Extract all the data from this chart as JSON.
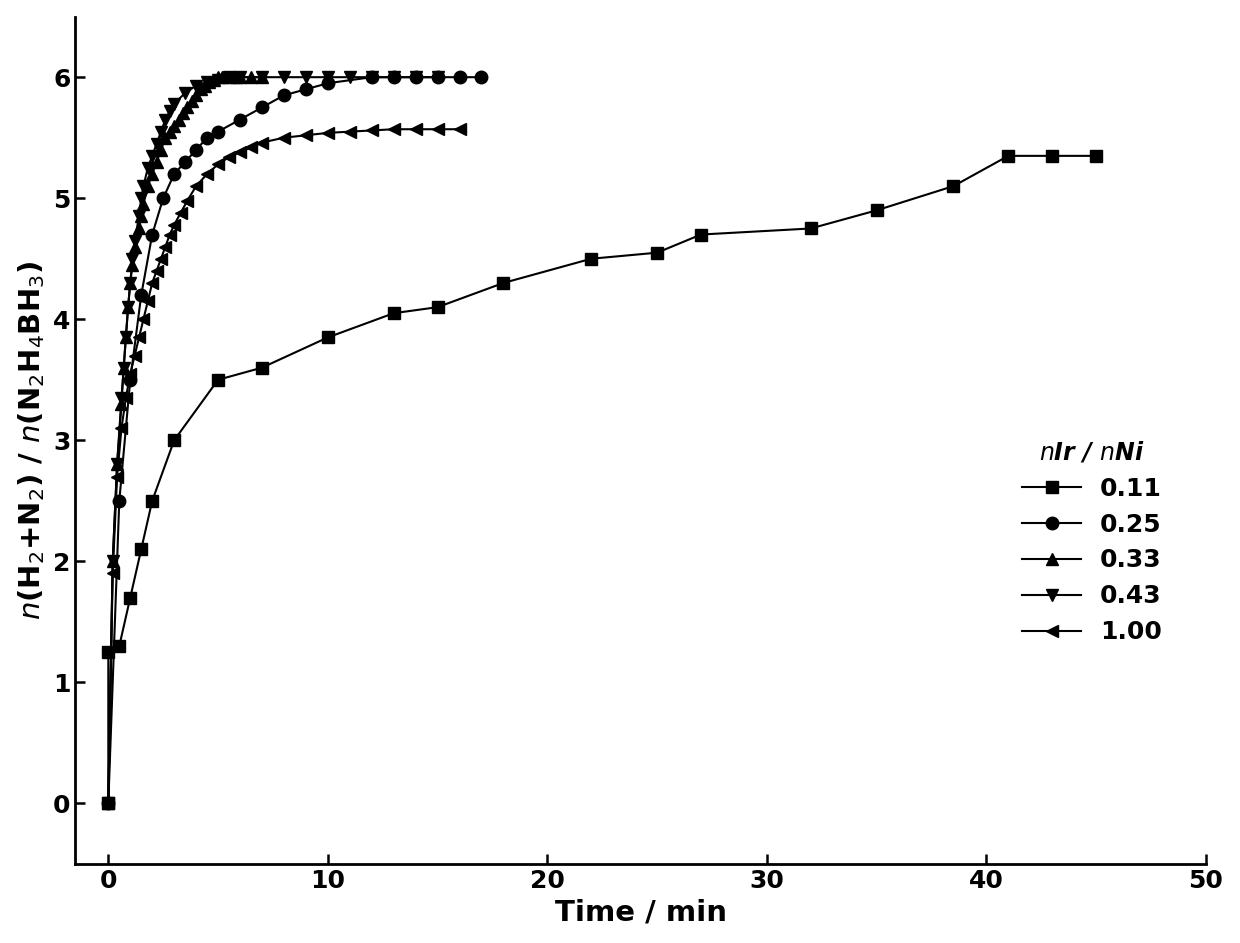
{
  "series": {
    "0.11": {
      "x": [
        0,
        0.0,
        0.5,
        1.0,
        1.5,
        2.0,
        3.0,
        5.0,
        7.0,
        10.0,
        13.0,
        15.0,
        18.0,
        22.0,
        25.0,
        27.0,
        32.0,
        35.0,
        38.5,
        41.0,
        43.0,
        45.0
      ],
      "y": [
        0,
        1.25,
        1.3,
        1.7,
        2.1,
        2.5,
        3.0,
        3.5,
        3.6,
        3.85,
        4.05,
        4.1,
        4.3,
        4.5,
        4.55,
        4.7,
        4.75,
        4.9,
        5.1,
        5.35,
        5.35,
        5.35
      ],
      "marker": "s",
      "label": "0.11",
      "markersize": 9
    },
    "0.25": {
      "x": [
        0,
        0.5,
        1.0,
        1.5,
        2.0,
        2.5,
        3.0,
        3.5,
        4.0,
        4.5,
        5.0,
        6.0,
        7.0,
        8.0,
        9.0,
        10.0,
        12.0,
        13.0,
        14.0,
        15.0,
        16.0,
        17.0
      ],
      "y": [
        0,
        2.5,
        3.5,
        4.2,
        4.7,
        5.0,
        5.2,
        5.3,
        5.4,
        5.5,
        5.55,
        5.65,
        5.75,
        5.85,
        5.9,
        5.95,
        6.0,
        6.0,
        6.0,
        6.0,
        6.0,
        6.0
      ],
      "marker": "o",
      "label": "0.25",
      "markersize": 9
    },
    "0.33": {
      "x": [
        0,
        0.2,
        0.4,
        0.6,
        0.7,
        0.8,
        0.9,
        1.0,
        1.1,
        1.2,
        1.4,
        1.5,
        1.6,
        1.8,
        2.0,
        2.2,
        2.4,
        2.6,
        2.8,
        3.0,
        3.2,
        3.4,
        3.6,
        3.8,
        4.0,
        4.2,
        4.4,
        4.6,
        4.8,
        5.0,
        5.2,
        5.5,
        5.8,
        6.0,
        6.5,
        7.0
      ],
      "y": [
        0,
        2.0,
        2.8,
        3.3,
        3.6,
        3.85,
        4.1,
        4.3,
        4.45,
        4.6,
        4.75,
        4.85,
        4.95,
        5.1,
        5.2,
        5.3,
        5.4,
        5.5,
        5.55,
        5.6,
        5.65,
        5.7,
        5.75,
        5.8,
        5.85,
        5.9,
        5.93,
        5.96,
        5.98,
        6.0,
        6.0,
        6.0,
        6.0,
        6.0,
        6.0,
        6.0
      ],
      "marker": "^",
      "label": "0.33",
      "markersize": 9
    },
    "0.43": {
      "x": [
        0,
        0.2,
        0.4,
        0.6,
        0.7,
        0.8,
        0.9,
        1.0,
        1.1,
        1.2,
        1.4,
        1.5,
        1.6,
        1.8,
        2.0,
        2.2,
        2.4,
        2.6,
        2.8,
        3.0,
        3.5,
        4.0,
        4.5,
        5.0,
        5.5,
        6.0,
        7.0,
        8.0,
        9.0,
        10.0,
        11.0,
        12.0,
        13.0,
        14.0,
        15.0
      ],
      "y": [
        0,
        2.0,
        2.8,
        3.35,
        3.6,
        3.85,
        4.1,
        4.3,
        4.5,
        4.65,
        4.85,
        5.0,
        5.1,
        5.25,
        5.35,
        5.45,
        5.55,
        5.65,
        5.72,
        5.78,
        5.87,
        5.93,
        5.96,
        5.98,
        6.0,
        6.0,
        6.0,
        6.0,
        6.0,
        6.0,
        6.0,
        6.0,
        6.0,
        6.0,
        6.0
      ],
      "marker": "v",
      "label": "0.43",
      "markersize": 9
    },
    "1.00": {
      "x": [
        0,
        0.2,
        0.4,
        0.6,
        0.8,
        1.0,
        1.2,
        1.4,
        1.6,
        1.8,
        2.0,
        2.2,
        2.4,
        2.6,
        2.8,
        3.0,
        3.3,
        3.6,
        4.0,
        4.5,
        5.0,
        5.5,
        6.0,
        6.5,
        7.0,
        8.0,
        9.0,
        10.0,
        11.0,
        12.0,
        13.0,
        14.0,
        15.0,
        16.0
      ],
      "y": [
        0,
        1.9,
        2.7,
        3.1,
        3.35,
        3.55,
        3.7,
        3.85,
        4.0,
        4.15,
        4.3,
        4.4,
        4.5,
        4.6,
        4.7,
        4.78,
        4.88,
        4.98,
        5.1,
        5.2,
        5.28,
        5.34,
        5.38,
        5.42,
        5.46,
        5.5,
        5.52,
        5.54,
        5.55,
        5.56,
        5.57,
        5.57,
        5.57,
        5.57
      ],
      "marker": "<",
      "label": "1.00",
      "markersize": 9
    }
  },
  "xlabel": "Time / min",
  "ylabel": "$n$(H$_2$+N$_2$) / $n$(N$_2$H$_4$BH$_3$)",
  "legend_title": "$n$Ir / $n$Ni",
  "xlim": [
    -1.5,
    50
  ],
  "ylim": [
    -0.5,
    6.5
  ],
  "xticks": [
    0,
    10,
    20,
    30,
    40,
    50
  ],
  "yticks": [
    0,
    1,
    2,
    3,
    4,
    5,
    6
  ],
  "color": "#000000",
  "linewidth": 1.5,
  "markersize": 9,
  "fontsize_ticks": 18,
  "fontsize_labels": 21,
  "fontsize_legend": 17
}
